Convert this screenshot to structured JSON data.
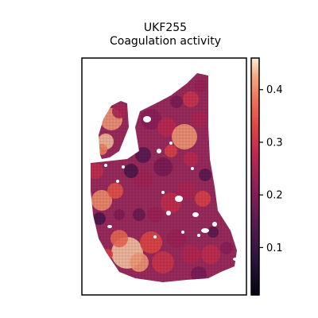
{
  "chart_data": {
    "type": "heatmap",
    "title_lines": [
      "UKF255",
      "Coagulation activity"
    ],
    "xlabel": "",
    "ylabel": "",
    "colorbar": {
      "colormap": "rocket",
      "range": [
        0.01,
        0.46
      ],
      "ticks": [
        0.1,
        0.2,
        0.3,
        0.4
      ],
      "tick_labels": [
        "0.1",
        "0.2",
        "0.3",
        "0.4"
      ]
    },
    "axes_ticks_visible": false,
    "grid": false
  }
}
